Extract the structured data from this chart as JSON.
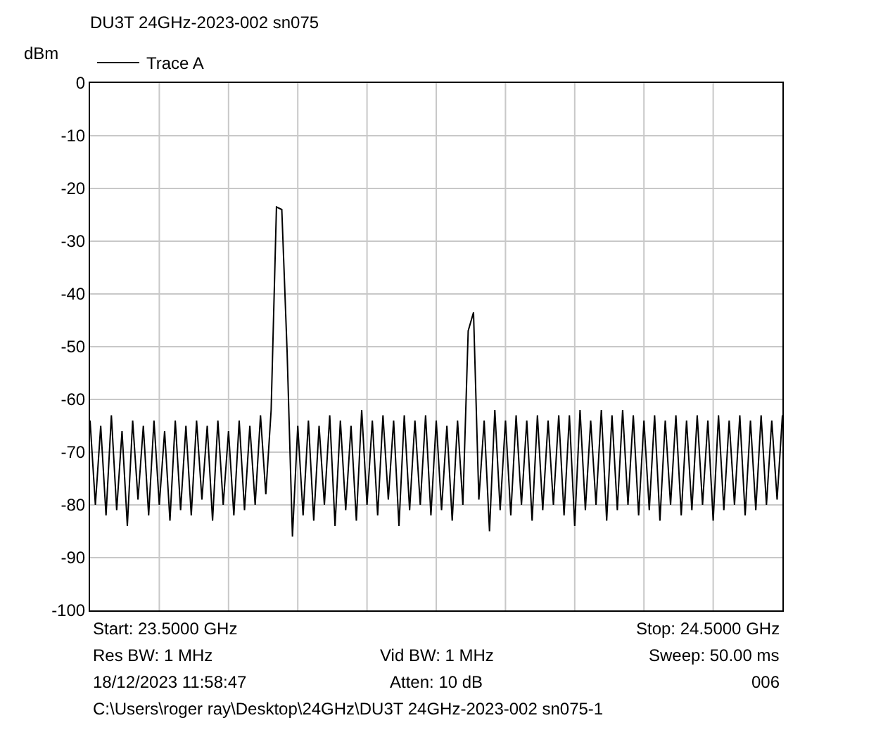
{
  "chart_data": {
    "type": "line",
    "title": "DU3T 24GHz-2023-002 sn075",
    "ylabel": "dBm",
    "categories": [
      null,
      null,
      null,
      null,
      null,
      null,
      null,
      null,
      null,
      null,
      null,
      null,
      null,
      null,
      null,
      null,
      null,
      null,
      null,
      null,
      null,
      null,
      null,
      null,
      null,
      null,
      null,
      null,
      null,
      null,
      null,
      null,
      null,
      null,
      null,
      null,
      null,
      null,
      null,
      null,
      null,
      null,
      null,
      null,
      null,
      null,
      null,
      null,
      null,
      null,
      null,
      null,
      null,
      null,
      null,
      null,
      null,
      null,
      null,
      null,
      null,
      null,
      null,
      null,
      null,
      null,
      null,
      null,
      null,
      null,
      null,
      null,
      null,
      null,
      null,
      null,
      null,
      null,
      null,
      null,
      null,
      null,
      null,
      null,
      null,
      null,
      null,
      null,
      null,
      null,
      null,
      null,
      null,
      null,
      null,
      null,
      null,
      null,
      null,
      null,
      null,
      null,
      null,
      null,
      null,
      null,
      null,
      null,
      null,
      null,
      null,
      null,
      null,
      null,
      null,
      null,
      null,
      null,
      null,
      null,
      null,
      null,
      null,
      null,
      null,
      null,
      null,
      null,
      null,
      null,
      null
    ],
    "series": [
      {
        "name": "Trace A",
        "color": "#000000",
        "values": [
          -64,
          -80,
          -65,
          -82,
          -63,
          -81,
          -66,
          -84,
          -64,
          -79,
          -65,
          -82,
          -64,
          -80,
          -66,
          -83,
          -64,
          -81,
          -65,
          -82,
          -64,
          -79,
          -65,
          -83,
          -64,
          -80,
          -66,
          -82,
          -64,
          -81,
          -65,
          -80,
          -63,
          -78,
          -62,
          -23.5,
          -24,
          -51,
          -86,
          -65,
          -82,
          -64,
          -83,
          -65,
          -80,
          -63,
          -84,
          -64,
          -81,
          -65,
          -83,
          -62,
          -80,
          -64,
          -82,
          -63,
          -79,
          -64,
          -84,
          -63,
          -81,
          -64,
          -80,
          -63,
          -82,
          -64,
          -81,
          -65,
          -83,
          -64,
          -80,
          -47,
          -43.5,
          -79,
          -64,
          -85,
          -62,
          -81,
          -64,
          -82,
          -63,
          -80,
          -64,
          -83,
          -63,
          -81,
          -64,
          -80,
          -63,
          -82,
          -63,
          -84,
          -62,
          -81,
          -64,
          -80,
          -62,
          -83,
          -63,
          -81,
          -62,
          -80,
          -63,
          -82,
          -64,
          -81,
          -63,
          -83,
          -64,
          -80,
          -63,
          -82,
          -64,
          -81,
          -63,
          -80,
          -64,
          -83,
          -63,
          -81,
          -64,
          -80,
          -63,
          -82,
          -64,
          -81,
          -63,
          -80,
          -64,
          -79,
          -63
        ]
      }
    ],
    "ylim": [
      -100,
      0
    ],
    "yticks": [
      0,
      -10,
      -20,
      -30,
      -40,
      -50,
      -60,
      -70,
      -80,
      -90,
      -100
    ],
    "tick_labels": "y",
    "grid": true,
    "legend": "top left",
    "marker": "none",
    "line_style": "solid",
    "annotations": [
      "Start: 23.5000 GHz",
      "Stop: 24.5000 GHz",
      "Res BW: 1 MHz",
      "Vid BW: 1 MHz",
      "Sweep: 50.00 ms",
      "18/12/2023 11:58:47",
      "Atten: 10 dB",
      "006",
      "C:\\Users\\roger ray\\Desktop\\24GHz\\DU3T 24GHz-2023-002 sn075-1"
    ]
  }
}
